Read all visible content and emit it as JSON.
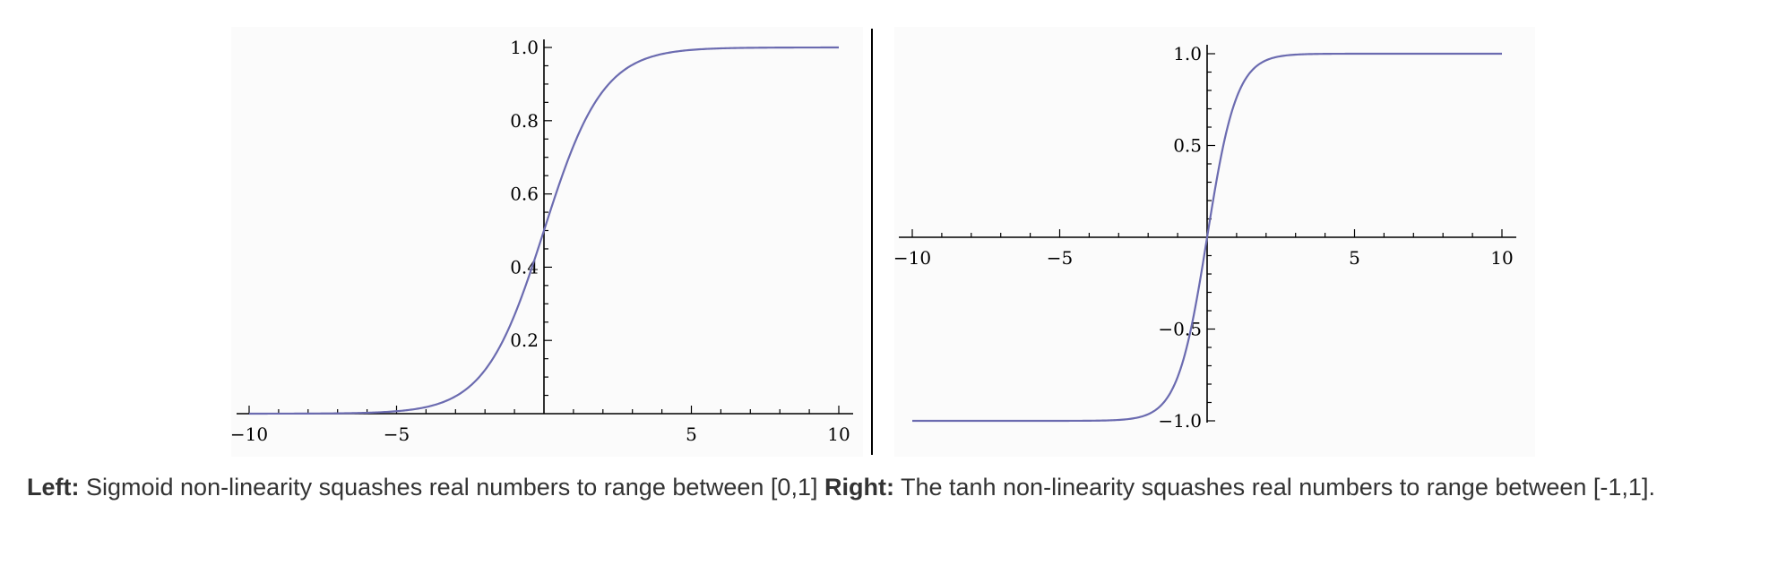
{
  "chart_data": [
    {
      "type": "line",
      "function": "sigmoid",
      "xlim": [
        -10,
        10
      ],
      "ylim": [
        0,
        1
      ],
      "x_ticks": [
        -10,
        -5,
        5,
        10
      ],
      "x_tick_labels": [
        "−10",
        "−5",
        "5",
        "10"
      ],
      "y_ticks": [
        0.2,
        0.4,
        0.6,
        0.8,
        1.0
      ],
      "y_tick_labels": [
        "0.2",
        "0.4",
        "0.6",
        "0.8",
        "1.0"
      ],
      "series": [
        {
          "x": [
            -10,
            -8,
            -6,
            -5,
            -4,
            -3,
            -2,
            -1,
            0,
            1,
            2,
            3,
            4,
            5,
            6,
            8,
            10
          ],
          "y": [
            4.54e-05,
            0.000335,
            0.00247,
            0.00669,
            0.018,
            0.047,
            0.119,
            0.269,
            0.5,
            0.731,
            0.881,
            0.953,
            0.982,
            0.993,
            0.998,
            0.9997,
            0.99995
          ],
          "color": "#6b6bb0"
        }
      ],
      "title": "",
      "xlabel": "",
      "ylabel": "",
      "grid": false
    },
    {
      "type": "line",
      "function": "tanh",
      "xlim": [
        -10,
        10
      ],
      "ylim": [
        -1,
        1
      ],
      "x_ticks": [
        -10,
        -5,
        5,
        10
      ],
      "x_tick_labels": [
        "−10",
        "−5",
        "5",
        "10"
      ],
      "y_ticks": [
        -1.0,
        -0.5,
        0.5,
        1.0
      ],
      "y_tick_labels": [
        "−1.0",
        "−0.5",
        "0.5",
        "1.0"
      ],
      "series": [
        {
          "x": [
            -10,
            -5,
            -4,
            -3,
            -2,
            -1.5,
            -1,
            -0.5,
            0,
            0.5,
            1,
            1.5,
            2,
            3,
            4,
            5,
            10
          ],
          "y": [
            -1.0,
            -0.9999,
            -0.9993,
            -0.995,
            -0.964,
            -0.905,
            -0.762,
            -0.462,
            0,
            0.462,
            0.762,
            0.905,
            0.964,
            0.995,
            0.9993,
            0.9999,
            1.0
          ],
          "color": "#6b6bb0"
        }
      ],
      "title": "",
      "xlabel": "",
      "ylabel": "",
      "grid": false
    }
  ],
  "caption": {
    "left_label": "Left:",
    "left_text": " Sigmoid non-linearity squashes real numbers to range between [0,1] ",
    "right_label": "Right:",
    "right_text": " The tanh non-linearity squashes real numbers to range between [-1,1]."
  }
}
